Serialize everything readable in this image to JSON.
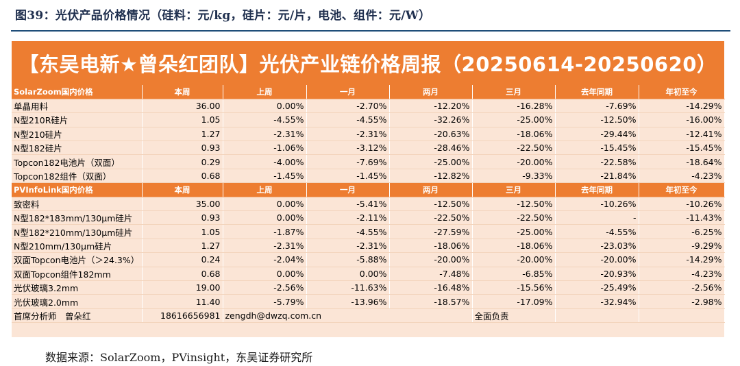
{
  "figure_title": "图39：光伏产品价格情况（硅料：元/kg，硅片：元/片，电池、组件：元/W）",
  "banner": "【东吴电新★曾朵红团队】光伏产业链价格周报（20250614-20250620）",
  "columns": [
    "本周",
    "上周",
    "一月",
    "两月",
    "三月",
    "去年同期",
    "年初至今"
  ],
  "section1": {
    "label": "SolarZoom国内价格",
    "rows": [
      [
        "单晶用料",
        "36.00",
        "0.00%",
        "-2.70%",
        "-12.20%",
        "-16.28%",
        "-7.69%",
        "-14.29%"
      ],
      [
        "N型210R硅片",
        "1.05",
        "-4.55%",
        "-4.55%",
        "-32.26%",
        "-25.00%",
        "-12.50%",
        "-16.00%"
      ],
      [
        "N型210硅片",
        "1.27",
        "-2.31%",
        "-2.31%",
        "-20.63%",
        "-18.06%",
        "-29.44%",
        "-12.41%"
      ],
      [
        "N型182硅片",
        "0.93",
        "-1.06%",
        "-3.12%",
        "-28.46%",
        "-22.50%",
        "-15.45%",
        "-15.45%"
      ],
      [
        "Topcon182电池片（双面）",
        "0.29",
        "-4.00%",
        "-7.69%",
        "-25.00%",
        "-20.00%",
        "-22.58%",
        "-18.64%"
      ],
      [
        "Topcon182组件（双面）",
        "0.68",
        "-1.45%",
        "-1.45%",
        "-12.82%",
        "-9.33%",
        "-21.84%",
        "-4.23%"
      ]
    ]
  },
  "section2": {
    "label": "PVInfoLink国内价格",
    "rows": [
      [
        "致密料",
        "35.00",
        "0.00%",
        "-5.41%",
        "-12.50%",
        "-12.50%",
        "-10.26%",
        "-10.26%"
      ],
      [
        "N型182*183mm/130μm硅片",
        "0.93",
        "0.00%",
        "-2.11%",
        "-22.50%",
        "-22.50%",
        "-",
        "-11.43%"
      ],
      [
        "N型182*210mm/130μm硅片",
        "1.05",
        "-1.87%",
        "-4.55%",
        "-27.59%",
        "-25.00%",
        "-4.55%",
        "-6.25%"
      ],
      [
        "N型210mm/130μm硅片",
        "1.27",
        "-2.31%",
        "-2.31%",
        "-18.06%",
        "-18.06%",
        "-23.03%",
        "-9.29%"
      ],
      [
        "双面Topcon电池片（＞24.3%）",
        "0.24",
        "-2.04%",
        "-5.88%",
        "-20.00%",
        "-20.00%",
        "-20.00%",
        "-14.29%"
      ],
      [
        "双面Topcon组件182mm",
        "0.68",
        "0.00%",
        "0.00%",
        "-7.48%",
        "-6.85%",
        "-20.93%",
        "-4.23%"
      ],
      [
        "光伏玻璃3.2mm",
        "19.00",
        "-2.56%",
        "-11.63%",
        "-16.48%",
        "-15.56%",
        "-25.49%",
        "-2.56%"
      ],
      [
        "光伏玻璃2.0mm",
        "11.40",
        "-5.79%",
        "-13.96%",
        "-18.57%",
        "-17.09%",
        "-32.94%",
        "-2.98%"
      ]
    ]
  },
  "footer": {
    "analyst": "首席分析师　曾朵红",
    "phone": "18616656981",
    "email": "zengdh@dwzq.com.cn",
    "note": "全面负责"
  },
  "source": "数据来源：SolarZoom，PVinsight，东吴证券研究所",
  "colors": {
    "header_orange": "#ed7d31",
    "row_peach": "#fbe5d6",
    "title_navy": "#1f2f4e"
  }
}
